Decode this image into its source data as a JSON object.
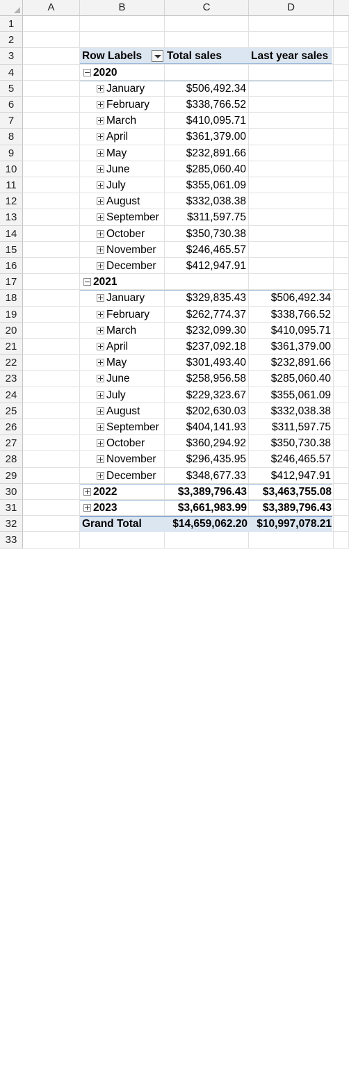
{
  "columns": [
    "A",
    "B",
    "C",
    "D"
  ],
  "row_numbers": [
    "1",
    "2",
    "3",
    "4",
    "5",
    "6",
    "7",
    "8",
    "9",
    "10",
    "11",
    "12",
    "13",
    "14",
    "15",
    "16",
    "17",
    "18",
    "19",
    "20",
    "21",
    "22",
    "23",
    "24",
    "25",
    "26",
    "27",
    "28",
    "29",
    "30",
    "31",
    "32",
    "33"
  ],
  "pivot": {
    "row_labels_header": "Row Labels",
    "total_sales_header": "Total sales",
    "last_year_header": "Last year sales",
    "grand_total_label": "Grand Total",
    "grand_total_sales": "$14,659,062.20",
    "grand_total_last_year": "$10,997,078.21",
    "y2020": {
      "label": "2020",
      "months": [
        {
          "name": "January",
          "total": "$506,492.34",
          "last": ""
        },
        {
          "name": "February",
          "total": "$338,766.52",
          "last": ""
        },
        {
          "name": "March",
          "total": "$410,095.71",
          "last": ""
        },
        {
          "name": "April",
          "total": "$361,379.00",
          "last": ""
        },
        {
          "name": "May",
          "total": "$232,891.66",
          "last": ""
        },
        {
          "name": "June",
          "total": "$285,060.40",
          "last": ""
        },
        {
          "name": "July",
          "total": "$355,061.09",
          "last": ""
        },
        {
          "name": "August",
          "total": "$332,038.38",
          "last": ""
        },
        {
          "name": "September",
          "total": "$311,597.75",
          "last": ""
        },
        {
          "name": "October",
          "total": "$350,730.38",
          "last": ""
        },
        {
          "name": "November",
          "total": "$246,465.57",
          "last": ""
        },
        {
          "name": "December",
          "total": "$412,947.91",
          "last": ""
        }
      ]
    },
    "y2021": {
      "label": "2021",
      "months": [
        {
          "name": "January",
          "total": "$329,835.43",
          "last": "$506,492.34"
        },
        {
          "name": "February",
          "total": "$262,774.37",
          "last": "$338,766.52"
        },
        {
          "name": "March",
          "total": "$232,099.30",
          "last": "$410,095.71"
        },
        {
          "name": "April",
          "total": "$237,092.18",
          "last": "$361,379.00"
        },
        {
          "name": "May",
          "total": "$301,493.40",
          "last": "$232,891.66"
        },
        {
          "name": "June",
          "total": "$258,956.58",
          "last": "$285,060.40"
        },
        {
          "name": "July",
          "total": "$229,323.67",
          "last": "$355,061.09"
        },
        {
          "name": "August",
          "total": "$202,630.03",
          "last": "$332,038.38"
        },
        {
          "name": "September",
          "total": "$404,141.93",
          "last": "$311,597.75"
        },
        {
          "name": "October",
          "total": "$360,294.92",
          "last": "$350,730.38"
        },
        {
          "name": "November",
          "total": "$296,435.95",
          "last": "$246,465.57"
        },
        {
          "name": "December",
          "total": "$348,677.33",
          "last": "$412,947.91"
        }
      ]
    },
    "y2022": {
      "label": "2022",
      "total": "$3,389,796.43",
      "last": "$3,463,755.08"
    },
    "y2023": {
      "label": "2023",
      "total": "$3,661,983.99",
      "last": "$3,389,796.43"
    }
  }
}
